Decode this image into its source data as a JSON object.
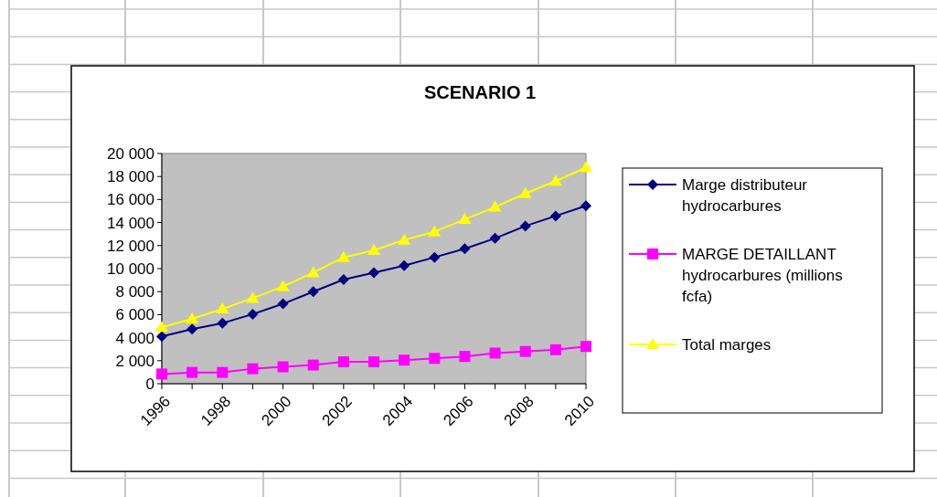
{
  "chart_data": {
    "type": "line",
    "title": "SCENARIO 1",
    "x": [
      1996,
      1997,
      1998,
      1999,
      2000,
      2001,
      2002,
      2003,
      2004,
      2005,
      2006,
      2007,
      2008,
      2009,
      2010
    ],
    "series": [
      {
        "name": "Marge distributeur hydrocarbures",
        "color": "#000080",
        "marker": "diamond",
        "values": [
          4100,
          4740,
          5260,
          6040,
          6940,
          8000,
          9050,
          9650,
          10260,
          10980,
          11730,
          12630,
          13700,
          14570,
          15460
        ]
      },
      {
        "name": "MARGE DETAILLANT hydrocarbures (millions fcfa)",
        "color": "#ff00ff",
        "marker": "square",
        "values": [
          840,
          980,
          980,
          1300,
          1470,
          1620,
          1900,
          1900,
          2050,
          2200,
          2370,
          2660,
          2800,
          2950,
          3240
        ]
      },
      {
        "name": "Total marges",
        "color": "#ffff00",
        "marker": "triangle",
        "values": [
          4900,
          5640,
          6500,
          7430,
          8440,
          9650,
          10980,
          11590,
          12490,
          13200,
          14280,
          15350,
          16530,
          17600,
          18790
        ]
      }
    ],
    "xlim": [
      1996,
      2010
    ],
    "xticks": [
      1996,
      {
        "value": 1997,
        "label": null
      },
      1998,
      {
        "value": 1999,
        "label": null
      },
      2000,
      {
        "value": 2001,
        "label": null
      },
      2002,
      {
        "value": 2003,
        "label": null
      },
      2004,
      {
        "value": 2005,
        "label": null
      },
      2006,
      {
        "value": 2007,
        "label": null
      },
      2008,
      {
        "value": 2009,
        "label": null
      },
      2010
    ],
    "ylim": [
      0,
      20000
    ],
    "yticks": [
      {
        "value": 0,
        "label": "0"
      },
      {
        "value": 2000,
        "label": "2 000"
      },
      {
        "value": 4000,
        "label": "4 000"
      },
      {
        "value": 6000,
        "label": "6 000"
      },
      {
        "value": 8000,
        "label": "8 000"
      },
      {
        "value": 10000,
        "label": "10 000"
      },
      {
        "value": 12000,
        "label": "12 000"
      },
      {
        "value": 14000,
        "label": "14 000"
      },
      {
        "value": 16000,
        "label": "16 000"
      },
      {
        "value": 18000,
        "label": "18 000"
      },
      {
        "value": 20000,
        "label": "20 000"
      }
    ],
    "grid": false,
    "legend": "right",
    "line_style": "solid"
  }
}
